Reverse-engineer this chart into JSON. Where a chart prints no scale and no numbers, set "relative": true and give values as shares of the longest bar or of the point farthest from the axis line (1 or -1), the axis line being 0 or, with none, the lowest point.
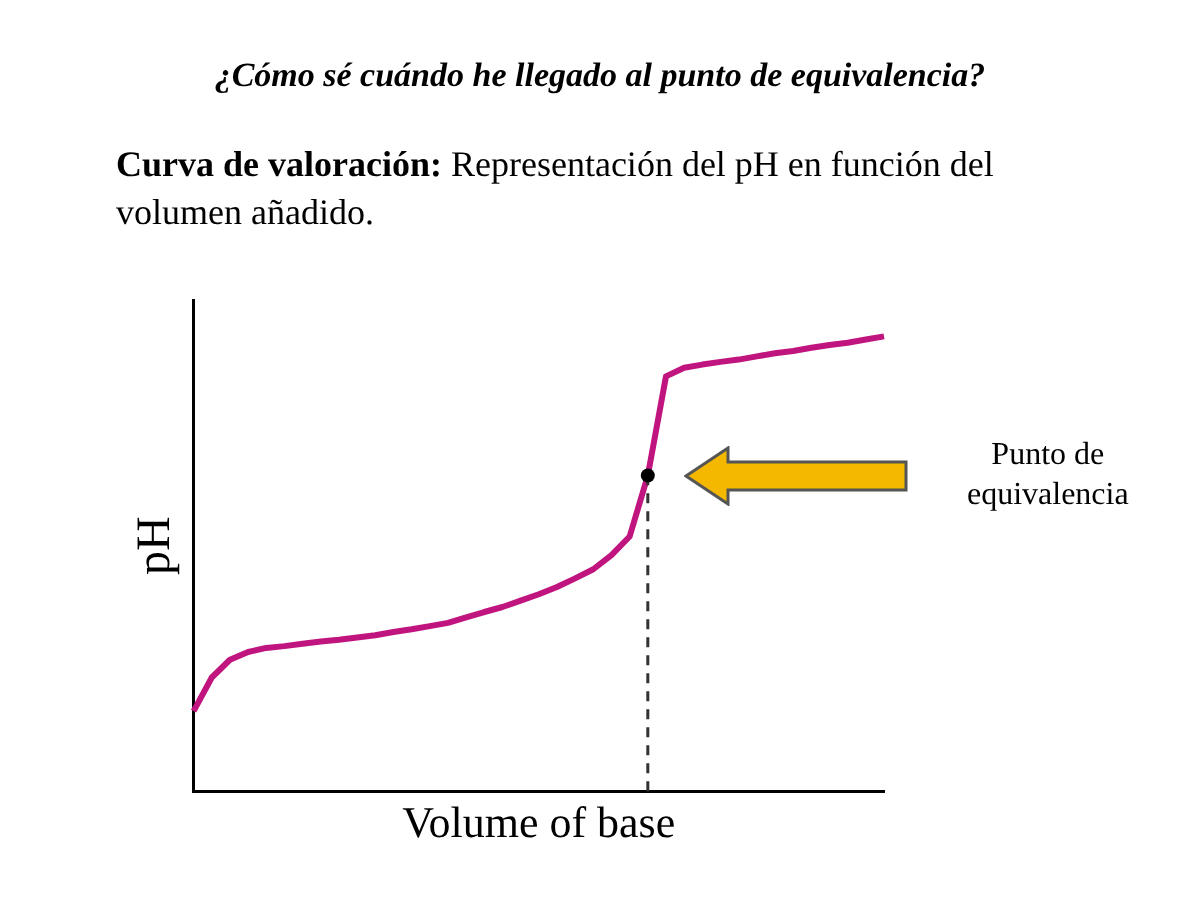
{
  "chart_data": {
    "type": "line",
    "title": "¿Cómo sé cuándo he llegado al punto de equivalencia?",
    "subtitle": "Curva de valoración: Representación del pH en función del volumen añadido.",
    "xlabel": "Volume of base",
    "ylabel": "pH",
    "relative": true,
    "grid": false,
    "legend": false,
    "marker": "none",
    "categories": [
      null,
      null,
      null,
      null,
      null,
      null,
      null,
      null,
      null,
      null,
      null,
      null,
      null,
      null,
      null,
      null,
      null,
      null,
      null,
      null,
      null,
      null,
      null,
      null,
      null,
      null,
      null,
      null,
      null,
      null,
      null,
      null,
      null,
      null,
      null,
      null,
      null,
      null,
      null
    ],
    "series": [
      {
        "color": "#c0157f",
        "values": [
          0.176,
          0.25,
          0.289,
          0.306,
          0.315,
          0.319,
          0.324,
          0.329,
          0.333,
          0.338,
          0.343,
          0.35,
          0.356,
          0.363,
          0.37,
          0.382,
          0.394,
          0.405,
          0.419,
          0.433,
          0.449,
          0.468,
          0.488,
          0.519,
          0.56,
          0.694,
          0.912,
          0.931,
          0.938,
          0.944,
          0.949,
          0.956,
          0.963,
          0.968,
          0.975,
          0.981,
          0.986,
          0.993,
          1.0
        ]
      }
    ],
    "annotations": [
      "Punto de equivalencia"
    ]
  }
}
